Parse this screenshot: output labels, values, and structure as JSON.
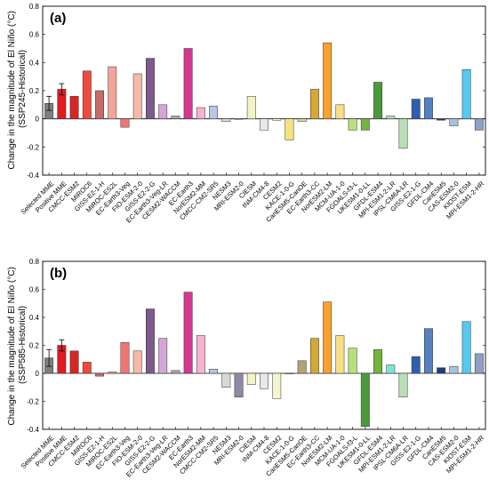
{
  "figure": {
    "ylabel_line1": "Change in the magnitude of El Niño (°C)"
  },
  "chart_data": [
    {
      "type": "bar",
      "panel_label": "(a)",
      "ylabel_line2": "(SSP245-Historical)",
      "ylim": [
        -0.4,
        0.8
      ],
      "yticks": [
        "-0.4",
        "-0.2",
        "0",
        "0.2",
        "0.4",
        "0.6",
        "0.8"
      ],
      "ytick_values": [
        -0.4,
        -0.2,
        0,
        0.2,
        0.4,
        0.6,
        0.8
      ],
      "categories": [
        "Selected MME",
        "Positive MME",
        "CMCC-ESM2",
        "MIROC6",
        "GISS-E2-1-H",
        "MIROC-ES2L",
        "EC-Earth3-Veg",
        "FIO-ESM-2-0",
        "GISS-E2-2-G",
        "EC-Earth3-Veg-LR",
        "CESM2-WACCM",
        "EC-Earth3",
        "NorESM2-MM",
        "CMCC-CM2-SR5",
        "NESM3",
        "MRI-ESM2-0",
        "CIESM",
        "INM-CM4-8",
        "CESM2",
        "KACE-1-0-G",
        "CanESM5-CanOE",
        "EC-Earth3-CC",
        "NorESM2-LM",
        "MCM-UA-1-0",
        "FGOALS-f3-L",
        "UKESM1-0-LL",
        "GFDL-ESM4",
        "MPI-ESM1-2-LR",
        "IPSL-CM6A-LR",
        "GISS-E2-1-G",
        "GFDL-CM4",
        "CanESM5",
        "CAS-ESM2-0",
        "KIOST-ESM",
        "MPI-ESM1-2-HR"
      ],
      "values": [
        0.11,
        0.21,
        0.16,
        0.34,
        0.2,
        0.37,
        -0.06,
        0.32,
        0.43,
        0.1,
        0.02,
        0.5,
        0.08,
        0.09,
        -0.02,
        0.0,
        0.16,
        -0.08,
        -0.01,
        -0.15,
        -0.02,
        0.21,
        0.54,
        0.1,
        -0.08,
        -0.08,
        0.26,
        0.02,
        -0.21,
        0.14,
        0.15,
        -0.01,
        -0.05,
        0.35,
        -0.08
      ],
      "errors": [
        0.05,
        0.04,
        null,
        null,
        null,
        null,
        null,
        null,
        null,
        null,
        null,
        null,
        null,
        null,
        null,
        null,
        null,
        null,
        null,
        null,
        null,
        null,
        null,
        null,
        null,
        null,
        null,
        null,
        null,
        null,
        null,
        null,
        null,
        null,
        null
      ],
      "colors": [
        "#7f7f7f",
        "#e31a1c",
        "#d62728",
        "#ef4a3b",
        "#c96a6a",
        "#f2a59a",
        "#f27575",
        "#f6b9a8",
        "#7d5a8c",
        "#d3a6d8",
        "#a8a8a8",
        "#d4388f",
        "#f6b2d3",
        "#b7c7e8",
        "#d8d8d8",
        "#eeeeee",
        "#f2f4c5",
        "#e8e8e8",
        "#f4f6cf",
        "#f4e47a",
        "#ddd59b",
        "#d4a838",
        "#f8a22c",
        "#f8de86",
        "#b8e07a",
        "#74b43e",
        "#4a9a3c",
        "#a9e4b4",
        "#b9ddb4",
        "#2d5fb0",
        "#5581c1",
        "#27366d",
        "#a8c1e1",
        "#57c8ef",
        "#8ea1c4"
      ],
      "grid": false,
      "legend": "none"
    },
    {
      "type": "bar",
      "panel_label": "(b)",
      "ylabel_line2": "(SSP585-Historical)",
      "ylim": [
        -0.4,
        0.8
      ],
      "yticks": [
        "-0.4",
        "-0.2",
        "0",
        "0.2",
        "0.4",
        "0.6",
        "0.8"
      ],
      "ytick_values": [
        -0.4,
        -0.2,
        0,
        0.2,
        0.4,
        0.6,
        0.8
      ],
      "categories": [
        "Selected MME",
        "Positive MME",
        "CMCC-ESM2",
        "MIROC6",
        "GISS-E2-1-H",
        "MIROC-ES2L",
        "EC-Earth3-Veg",
        "FIO-ESM-2-0",
        "GISS-E2-2-G",
        "EC-Earth3-Veg-LR",
        "CESM2-WACCM",
        "EC-Earth3",
        "NorESM2-MM",
        "CMCC-CM2-SR5",
        "NESM3",
        "MRI-ESM2-0",
        "CIESM",
        "INM-CM4-8",
        "CESM2",
        "KACE-1-0-G",
        "CanESM5-CanOE",
        "EC-Earth3-CC",
        "NorESM2-LM",
        "MCM-UA-1-0",
        "FGOALS-f3-L",
        "UKESM1-0-LL",
        "GFDL-ESM4",
        "MPI-ESM1-2-LR",
        "IPSL-CM6A-LR",
        "GISS-E2-1-G",
        "GFDL-CM4",
        "CanESM5",
        "CAS-ESM2-0",
        "KIOST-ESM",
        "MPI-ESM1-2-HR"
      ],
      "values": [
        0.11,
        0.2,
        0.16,
        0.08,
        -0.02,
        0.01,
        0.22,
        0.16,
        0.46,
        0.25,
        0.02,
        0.58,
        0.27,
        0.03,
        -0.1,
        -0.17,
        -0.08,
        -0.11,
        -0.18,
        0.0,
        0.09,
        0.25,
        0.51,
        0.27,
        0.18,
        -0.38,
        0.17,
        0.06,
        -0.17,
        0.12,
        0.32,
        0.04,
        0.05,
        0.37,
        0.14
      ],
      "errors": [
        0.06,
        0.04,
        null,
        null,
        null,
        null,
        null,
        null,
        null,
        null,
        null,
        null,
        null,
        null,
        null,
        null,
        null,
        null,
        null,
        null,
        null,
        null,
        null,
        null,
        null,
        null,
        null,
        null,
        null,
        null,
        null,
        null,
        null,
        null,
        null
      ],
      "colors": [
        "#7f7f7f",
        "#e31a1c",
        "#d62728",
        "#ef4a3b",
        "#c96a6a",
        "#f2a59a",
        "#f27575",
        "#f6b9a8",
        "#7d5a8c",
        "#d3a6d8",
        "#a8a8a8",
        "#d4388f",
        "#f6b2d3",
        "#b7c7e8",
        "#d8d8d8",
        "#8d8aa3",
        "#f2f4c5",
        "#e8e8e8",
        "#f4f6cf",
        "#f4e47a",
        "#b5a27a",
        "#d4a838",
        "#f8a22c",
        "#f8de86",
        "#b8e07a",
        "#4a9a3c",
        "#74b43e",
        "#7ee3d4",
        "#b9ddb4",
        "#2d5fb0",
        "#5581c1",
        "#1d3c7a",
        "#a8c1e1",
        "#57c8ef",
        "#8ea1c4"
      ],
      "grid": false,
      "legend": "none"
    }
  ]
}
